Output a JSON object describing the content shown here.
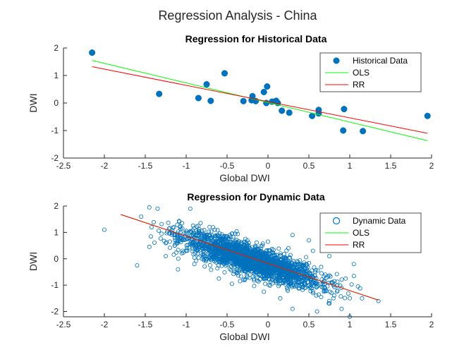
{
  "figure": {
    "title": "Regression Analysis - China"
  },
  "colors": {
    "marker": "#0072BD",
    "ols": "#00FF00",
    "rr": "#FF0000",
    "axis": "#262626"
  },
  "chart_data": [
    {
      "type": "scatter",
      "title": "Regression for Historical Data",
      "xlabel": "Global DWI",
      "ylabel": "DWI",
      "xlim": [
        -2.5,
        2
      ],
      "ylim": [
        -2,
        2
      ],
      "xticks": [
        "-2.5",
        "-2",
        "-1.5",
        "-1",
        "-0.5",
        "0",
        "0.5",
        "1",
        "1.5",
        "2"
      ],
      "yticks": [
        "-2",
        "-1",
        "0",
        "1",
        "2"
      ],
      "grid": false,
      "legend_position": "top-right",
      "marker_style": "filled",
      "series": [
        {
          "name": "Historical Data",
          "kind": "points",
          "points": [
            [
              -2.15,
              1.83
            ],
            [
              -1.33,
              0.33
            ],
            [
              -0.85,
              0.18
            ],
            [
              -0.75,
              0.68
            ],
            [
              -0.7,
              0.08
            ],
            [
              -0.53,
              1.08
            ],
            [
              -0.3,
              0.07
            ],
            [
              -0.2,
              0.1
            ],
            [
              -0.19,
              0.25
            ],
            [
              -0.15,
              0.07
            ],
            [
              -0.05,
              0.4
            ],
            [
              -0.02,
              0.0
            ],
            [
              -0.01,
              0.6
            ],
            [
              0.05,
              0.05
            ],
            [
              0.1,
              0.08
            ],
            [
              0.12,
              0.0
            ],
            [
              0.17,
              -0.28
            ],
            [
              0.26,
              -0.35
            ],
            [
              0.54,
              -0.47
            ],
            [
              0.62,
              -0.25
            ],
            [
              0.62,
              -0.38
            ],
            [
              0.93,
              -0.22
            ],
            [
              0.92,
              -1.0
            ],
            [
              1.16,
              -1.02
            ],
            [
              1.95,
              -0.47
            ]
          ]
        },
        {
          "name": "OLS",
          "kind": "line",
          "points": [
            [
              -2.15,
              1.55
            ],
            [
              1.95,
              -1.37
            ]
          ]
        },
        {
          "name": "RR",
          "kind": "line",
          "points": [
            [
              -2.15,
              1.32
            ],
            [
              1.95,
              -1.1
            ]
          ]
        }
      ]
    },
    {
      "type": "scatter",
      "title": "Regression for Dynamic Data",
      "xlabel": "Global DWI",
      "ylabel": "DWI",
      "xlim": [
        -2.5,
        2
      ],
      "ylim": [
        -2.2,
        2
      ],
      "xticks": [
        "-2.5",
        "-2",
        "-1.5",
        "-1",
        "-0.5",
        "0",
        "0.5",
        "1",
        "1.5",
        "2"
      ],
      "yticks": [
        "-2",
        "-1",
        "0",
        "1",
        "2"
      ],
      "grid": false,
      "legend_position": "top-right",
      "marker_style": "open",
      "series": [
        {
          "name": "Dynamic Data",
          "kind": "points",
          "points": [
            [
              -2.0,
              1.1
            ],
            [
              -1.55,
              1.6
            ],
            [
              -1.45,
              1.95
            ],
            [
              -1.35,
              1.9
            ],
            [
              -0.95,
              1.9
            ],
            [
              -1.45,
              0.45
            ],
            [
              -1.3,
              0.95
            ],
            [
              -1.15,
              1.2
            ],
            [
              -1.05,
              1.35
            ],
            [
              -1.0,
              1.0
            ],
            [
              -0.95,
              0.55
            ],
            [
              -0.9,
              0.8
            ],
            [
              -0.85,
              1.25
            ],
            [
              -0.8,
              0.4
            ],
            [
              -0.75,
              0.9
            ],
            [
              -0.7,
              0.6
            ],
            [
              -0.65,
              1.1
            ],
            [
              -0.6,
              0.2
            ],
            [
              -0.55,
              0.75
            ],
            [
              -0.5,
              0.45
            ],
            [
              -0.45,
              -0.3
            ],
            [
              -0.4,
              0.95
            ],
            [
              -0.35,
              0.1
            ],
            [
              -0.3,
              0.5
            ],
            [
              -0.25,
              0.7
            ],
            [
              -0.2,
              -0.1
            ],
            [
              -0.15,
              0.3
            ],
            [
              -0.1,
              -0.5
            ],
            [
              -0.05,
              0.15
            ],
            [
              0.0,
              0.65
            ],
            [
              0.05,
              -0.35
            ],
            [
              0.1,
              0.05
            ],
            [
              0.15,
              -0.7
            ],
            [
              0.2,
              -0.2
            ],
            [
              0.25,
              0.4
            ],
            [
              0.3,
              -0.55
            ],
            [
              0.35,
              -0.9
            ],
            [
              0.4,
              -0.4
            ],
            [
              0.45,
              -1.1
            ],
            [
              0.5,
              -0.7
            ],
            [
              0.55,
              -1.3
            ],
            [
              0.6,
              -0.95
            ],
            [
              0.65,
              -1.45
            ],
            [
              0.7,
              -0.6
            ],
            [
              0.75,
              -1.6
            ],
            [
              0.8,
              -1.0
            ],
            [
              0.85,
              -1.2
            ],
            [
              0.9,
              -1.9
            ],
            [
              0.95,
              -0.75
            ],
            [
              1.0,
              -1.5
            ],
            [
              1.0,
              -2.2
            ],
            [
              1.05,
              -0.65
            ],
            [
              1.1,
              -1.05
            ],
            [
              1.15,
              -1.5
            ],
            [
              1.35,
              -1.6
            ],
            [
              -1.6,
              -0.25
            ],
            [
              -1.25,
              0.1
            ],
            [
              -1.1,
              -0.4
            ],
            [
              -0.9,
              -0.2
            ],
            [
              -0.6,
              -0.75
            ],
            [
              -0.3,
              -0.8
            ],
            [
              -0.05,
              -1.25
            ],
            [
              0.15,
              -1.5
            ],
            [
              0.3,
              -1.9
            ],
            [
              0.6,
              -2.0
            ],
            [
              0.3,
              0.9
            ],
            [
              0.5,
              0.7
            ],
            [
              0.55,
              0.3
            ],
            [
              0.75,
              0.1
            ],
            [
              1.05,
              -0.2
            ]
          ],
          "cloud": {
            "count": 2300,
            "center_x": -0.2,
            "x_spread": 0.42,
            "slope": -0.97,
            "intercept": -0.25,
            "noise": 0.28,
            "xmin": -1.45,
            "xmax": 1.15,
            "ymin": -2.1,
            "ymax": 1.5
          }
        },
        {
          "name": "OLS",
          "kind": "line",
          "points": [
            [
              -1.8,
              1.68
            ],
            [
              1.35,
              -1.57
            ]
          ]
        },
        {
          "name": "RR",
          "kind": "line",
          "points": [
            [
              -1.8,
              1.68
            ],
            [
              1.35,
              -1.57
            ]
          ]
        }
      ]
    }
  ]
}
